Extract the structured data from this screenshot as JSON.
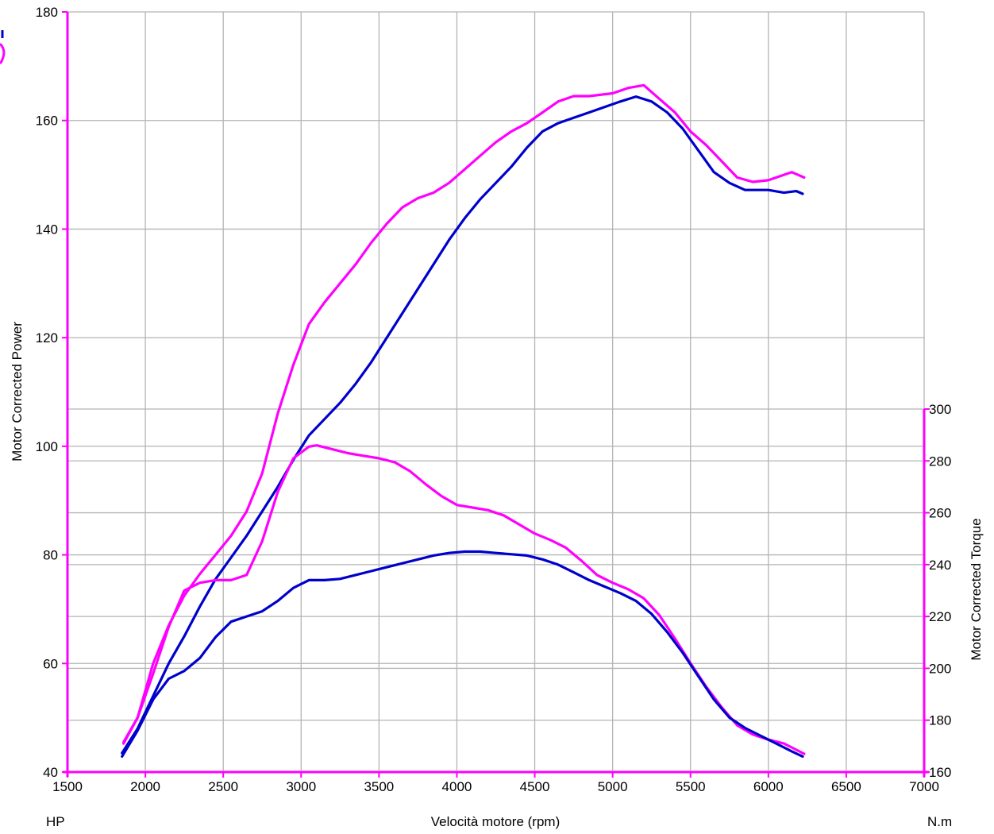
{
  "chart_data": {
    "type": "line",
    "xlabel": "Velocità motore (rpm)",
    "x_unit_left": "HP",
    "x_unit_right": "N.m",
    "ylabel_left": "Motor Corrected Power",
    "ylabel_right": "Motor Corrected Torque",
    "xlim": [
      1500,
      7000
    ],
    "ylim_left": [
      40,
      180
    ],
    "ylim_right": [
      160,
      300
    ],
    "x_ticks": [
      1500,
      2000,
      2500,
      3000,
      3500,
      4000,
      4500,
      5000,
      5500,
      6000,
      6500,
      7000
    ],
    "y_ticks_left": [
      40,
      60,
      80,
      100,
      120,
      140,
      160,
      180
    ],
    "y_ticks_right": [
      160,
      180,
      200,
      220,
      240,
      260,
      280,
      300
    ],
    "grid": true,
    "colors": {
      "magenta": "#FF00FF",
      "blue": "#0000CC",
      "grid": "#B4B4B4",
      "axis": "#FF00FF"
    },
    "series": [
      {
        "axis": "left",
        "color": "#FF00FF",
        "points": [
          [
            1860,
            45.5
          ],
          [
            1950,
            50
          ],
          [
            2050,
            60
          ],
          [
            2150,
            67
          ],
          [
            2250,
            72.5
          ],
          [
            2350,
            76.5
          ],
          [
            2450,
            80
          ],
          [
            2550,
            83.5
          ],
          [
            2650,
            88
          ],
          [
            2750,
            95
          ],
          [
            2850,
            106
          ],
          [
            2950,
            115
          ],
          [
            3050,
            122.5
          ],
          [
            3150,
            126.5
          ],
          [
            3250,
            130
          ],
          [
            3350,
            133.5
          ],
          [
            3450,
            137.5
          ],
          [
            3550,
            141
          ],
          [
            3650,
            144
          ],
          [
            3750,
            145.7
          ],
          [
            3850,
            146.7
          ],
          [
            3950,
            148.5
          ],
          [
            4050,
            151
          ],
          [
            4150,
            153.5
          ],
          [
            4250,
            156
          ],
          [
            4350,
            158
          ],
          [
            4450,
            159.5
          ],
          [
            4550,
            161.5
          ],
          [
            4650,
            163.5
          ],
          [
            4750,
            164.5
          ],
          [
            4850,
            164.5
          ],
          [
            5000,
            165
          ],
          [
            5100,
            166
          ],
          [
            5200,
            166.5
          ],
          [
            5300,
            164
          ],
          [
            5400,
            161.5
          ],
          [
            5500,
            158
          ],
          [
            5600,
            155.5
          ],
          [
            5700,
            152.5
          ],
          [
            5800,
            149.5
          ],
          [
            5900,
            148.7
          ],
          [
            6000,
            149
          ],
          [
            6100,
            150
          ],
          [
            6150,
            150.5
          ],
          [
            6230,
            149.5
          ]
        ]
      },
      {
        "axis": "left",
        "color": "#0000CC",
        "points": [
          [
            1850,
            43.5
          ],
          [
            1950,
            48
          ],
          [
            2050,
            54
          ],
          [
            2150,
            60
          ],
          [
            2250,
            65
          ],
          [
            2350,
            70.5
          ],
          [
            2450,
            75.5
          ],
          [
            2550,
            79.5
          ],
          [
            2650,
            83.5
          ],
          [
            2750,
            88
          ],
          [
            2850,
            92.5
          ],
          [
            2950,
            97.5
          ],
          [
            3050,
            102
          ],
          [
            3150,
            105
          ],
          [
            3250,
            108
          ],
          [
            3350,
            111.5
          ],
          [
            3450,
            115.5
          ],
          [
            3550,
            120
          ],
          [
            3650,
            124.5
          ],
          [
            3750,
            129
          ],
          [
            3850,
            133.5
          ],
          [
            3950,
            138
          ],
          [
            4050,
            142
          ],
          [
            4150,
            145.5
          ],
          [
            4250,
            148.5
          ],
          [
            4350,
            151.5
          ],
          [
            4450,
            155
          ],
          [
            4550,
            158
          ],
          [
            4650,
            159.5
          ],
          [
            4750,
            160.5
          ],
          [
            4850,
            161.5
          ],
          [
            4950,
            162.5
          ],
          [
            5050,
            163.5
          ],
          [
            5150,
            164.4
          ],
          [
            5250,
            163.5
          ],
          [
            5350,
            161.5
          ],
          [
            5450,
            158.5
          ],
          [
            5550,
            154.5
          ],
          [
            5650,
            150.5
          ],
          [
            5750,
            148.5
          ],
          [
            5850,
            147.2
          ],
          [
            6000,
            147.2
          ],
          [
            6100,
            146.7
          ],
          [
            6180,
            147
          ],
          [
            6220,
            146.5
          ]
        ]
      },
      {
        "axis": "right",
        "color": "#FF00FF",
        "points": [
          [
            1860,
            171
          ],
          [
            1950,
            181
          ],
          [
            2050,
            198
          ],
          [
            2150,
            216
          ],
          [
            2250,
            230
          ],
          [
            2350,
            233
          ],
          [
            2450,
            234
          ],
          [
            2550,
            234
          ],
          [
            2650,
            236
          ],
          [
            2750,
            249
          ],
          [
            2850,
            268
          ],
          [
            2950,
            281
          ],
          [
            3050,
            285.5
          ],
          [
            3100,
            286
          ],
          [
            3200,
            284.5
          ],
          [
            3300,
            283
          ],
          [
            3400,
            282
          ],
          [
            3500,
            281
          ],
          [
            3600,
            279.5
          ],
          [
            3700,
            276
          ],
          [
            3800,
            271
          ],
          [
            3900,
            266.5
          ],
          [
            4000,
            263
          ],
          [
            4100,
            262
          ],
          [
            4200,
            261
          ],
          [
            4300,
            259
          ],
          [
            4400,
            255.5
          ],
          [
            4500,
            252
          ],
          [
            4600,
            249.5
          ],
          [
            4700,
            246.5
          ],
          [
            4800,
            241.5
          ],
          [
            4900,
            236
          ],
          [
            5000,
            233
          ],
          [
            5100,
            230.5
          ],
          [
            5200,
            227
          ],
          [
            5300,
            220.5
          ],
          [
            5400,
            211.5
          ],
          [
            5500,
            202
          ],
          [
            5600,
            193
          ],
          [
            5700,
            185
          ],
          [
            5800,
            178
          ],
          [
            5900,
            174.5
          ],
          [
            6000,
            172.5
          ],
          [
            6100,
            171
          ],
          [
            6150,
            169.5
          ],
          [
            6230,
            167
          ]
        ]
      },
      {
        "axis": "right",
        "color": "#0000CC",
        "points": [
          [
            1850,
            166
          ],
          [
            1950,
            176
          ],
          [
            2050,
            188
          ],
          [
            2150,
            196
          ],
          [
            2250,
            199
          ],
          [
            2350,
            204
          ],
          [
            2450,
            212
          ],
          [
            2550,
            218
          ],
          [
            2650,
            220
          ],
          [
            2750,
            222
          ],
          [
            2850,
            226
          ],
          [
            2950,
            231
          ],
          [
            3050,
            234
          ],
          [
            3150,
            234
          ],
          [
            3250,
            234.5
          ],
          [
            3350,
            236
          ],
          [
            3450,
            237.5
          ],
          [
            3550,
            239
          ],
          [
            3650,
            240.5
          ],
          [
            3750,
            242
          ],
          [
            3850,
            243.5
          ],
          [
            3950,
            244.5
          ],
          [
            4050,
            245
          ],
          [
            4150,
            245
          ],
          [
            4250,
            244.5
          ],
          [
            4350,
            244
          ],
          [
            4450,
            243.5
          ],
          [
            4550,
            242
          ],
          [
            4650,
            240
          ],
          [
            4750,
            237
          ],
          [
            4850,
            234
          ],
          [
            4950,
            231.5
          ],
          [
            5050,
            229
          ],
          [
            5150,
            226
          ],
          [
            5250,
            221
          ],
          [
            5350,
            214
          ],
          [
            5450,
            206
          ],
          [
            5550,
            197
          ],
          [
            5650,
            188
          ],
          [
            5750,
            181
          ],
          [
            5850,
            177
          ],
          [
            5950,
            174
          ],
          [
            6050,
            171
          ],
          [
            6150,
            168
          ],
          [
            6220,
            166
          ]
        ]
      }
    ]
  }
}
